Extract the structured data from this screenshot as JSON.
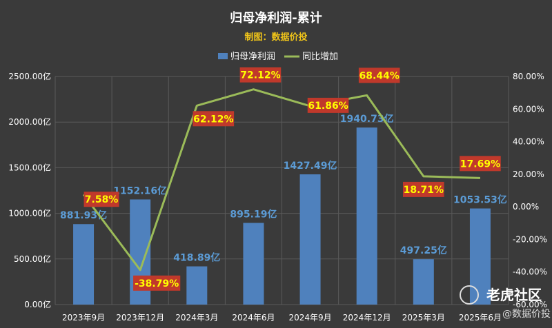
{
  "chart_data": {
    "type": "bar",
    "title": "归母净利润-累计",
    "subtitle": "制图：数据价投",
    "categories": [
      "2023年9月",
      "2023年12月",
      "2024年3月",
      "2024年6月",
      "2024年9月",
      "2024年12月",
      "2025年3月",
      "2025年6月"
    ],
    "series": [
      {
        "name": "归母净利润",
        "type": "bar",
        "axis": "left",
        "values": [
          881.93,
          1152.16,
          418.89,
          895.19,
          1427.49,
          1940.73,
          497.25,
          1053.53
        ],
        "labels": [
          "881.93亿",
          "1152.16亿",
          "418.89亿",
          "895.19亿",
          "1427.49亿",
          "1940.73亿",
          "497.25亿",
          "1053.53亿"
        ],
        "color": "#4f81bd"
      },
      {
        "name": "同比增加",
        "type": "line",
        "axis": "right",
        "values": [
          7.58,
          -38.79,
          62.12,
          72.12,
          61.86,
          68.44,
          18.71,
          17.69
        ],
        "labels": [
          "7.58%",
          "-38.79%",
          "62.12%",
          "72.12%",
          "61.86%",
          "68.44%",
          "18.71%",
          "17.69%"
        ],
        "color": "#9bbb59"
      }
    ],
    "y_left": {
      "range": [
        0,
        2500
      ],
      "ticks": [
        "0.00亿",
        "500.00亿",
        "1000.00亿",
        "1500.00亿",
        "2000.00亿",
        "2500.00亿"
      ]
    },
    "y_right": {
      "range": [
        -60,
        80
      ],
      "ticks": [
        "-60.00%",
        "-40.00%",
        "-20.00%",
        "0.00%",
        "20.00%",
        "40.00%",
        "60.00%",
        "80.00%"
      ]
    },
    "grid": true,
    "legend_position": "top"
  },
  "watermark": {
    "main": "老虎社区",
    "sub": "@数据价投"
  },
  "colors": {
    "background": "#3a3a3a",
    "grid": "#5a5a5a",
    "pct_label_bg": "#c0392b"
  }
}
